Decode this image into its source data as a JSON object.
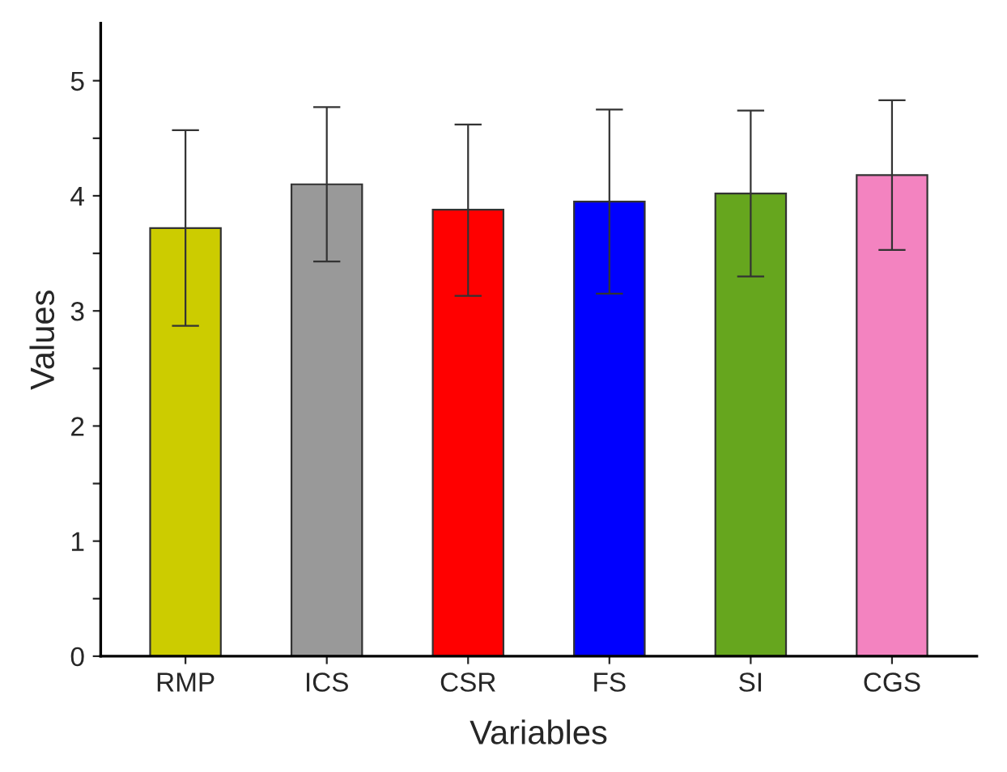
{
  "chart_data": {
    "type": "bar",
    "xlabel": "Variables",
    "ylabel": "Values",
    "categories": [
      "RMP",
      "ICS",
      "CSR",
      "FS",
      "SI",
      "CGS"
    ],
    "values": [
      3.72,
      4.1,
      3.88,
      3.95,
      4.02,
      4.18
    ],
    "errors": [
      [
        2.87,
        4.57
      ],
      [
        3.43,
        4.77
      ],
      [
        3.13,
        4.62
      ],
      [
        3.15,
        4.75
      ],
      [
        3.3,
        4.74
      ],
      [
        3.53,
        4.83
      ]
    ],
    "colors": [
      "#cccc00",
      "#999999",
      "#ff0000",
      "#0000ff",
      "#66a61e",
      "#f383c0"
    ],
    "ylim": [
      0,
      5.5
    ],
    "yticks": [
      0,
      {
        "value": 0.5,
        "label": null
      },
      1,
      {
        "value": 1.5,
        "label": null
      },
      2,
      {
        "value": 2.5,
        "label": null
      },
      3,
      {
        "value": 3.5,
        "label": null
      },
      4,
      {
        "value": 4.5,
        "label": null
      },
      5
    ],
    "grid": false,
    "legend": false
  }
}
